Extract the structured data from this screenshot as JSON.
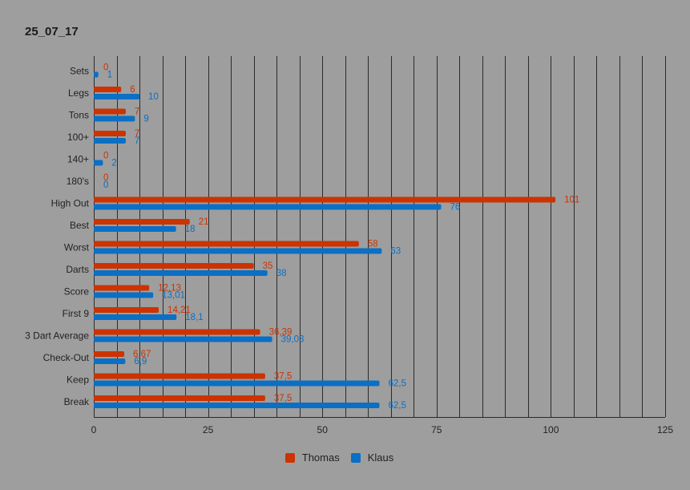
{
  "chart_data": {
    "type": "bar",
    "orientation": "horizontal",
    "title": "25_07_17",
    "xlim": [
      0,
      125
    ],
    "x_ticks": [
      0,
      25,
      50,
      75,
      100,
      125
    ],
    "grid": "vertical",
    "legend_position": "bottom",
    "categories": [
      "Sets",
      "Legs",
      "Tons",
      "100+",
      "140+",
      "180's",
      "High Out",
      "Best",
      "Worst",
      "Darts",
      "Score",
      "First 9",
      "3 Dart Average",
      "Check-Out",
      "Keep",
      "Break"
    ],
    "series": [
      {
        "name": "Thomas",
        "color": "#cc3300",
        "values": [
          0,
          6,
          7,
          7,
          0,
          0,
          101,
          21,
          58,
          35,
          12.13,
          14.21,
          36.39,
          6.67,
          37.5,
          37.5
        ],
        "labels": [
          "0",
          "6",
          "7",
          "7",
          "0",
          "0",
          "101",
          "21",
          "58",
          "35",
          "12,13",
          "14,21",
          "36,39",
          "6,67",
          "37,5",
          "37,5"
        ]
      },
      {
        "name": "Klaus",
        "color": "#0b6fc4",
        "values": [
          1,
          10,
          9,
          7,
          2,
          0,
          76,
          18,
          63,
          38,
          13.01,
          18.1,
          39.03,
          6.9,
          62.5,
          62.5
        ],
        "labels": [
          "1",
          "10",
          "9",
          "7",
          "2",
          "0",
          "76",
          "18",
          "63",
          "38",
          "13,01",
          "18,1",
          "39,03",
          "6,9",
          "62,5",
          "62,5"
        ]
      }
    ]
  }
}
